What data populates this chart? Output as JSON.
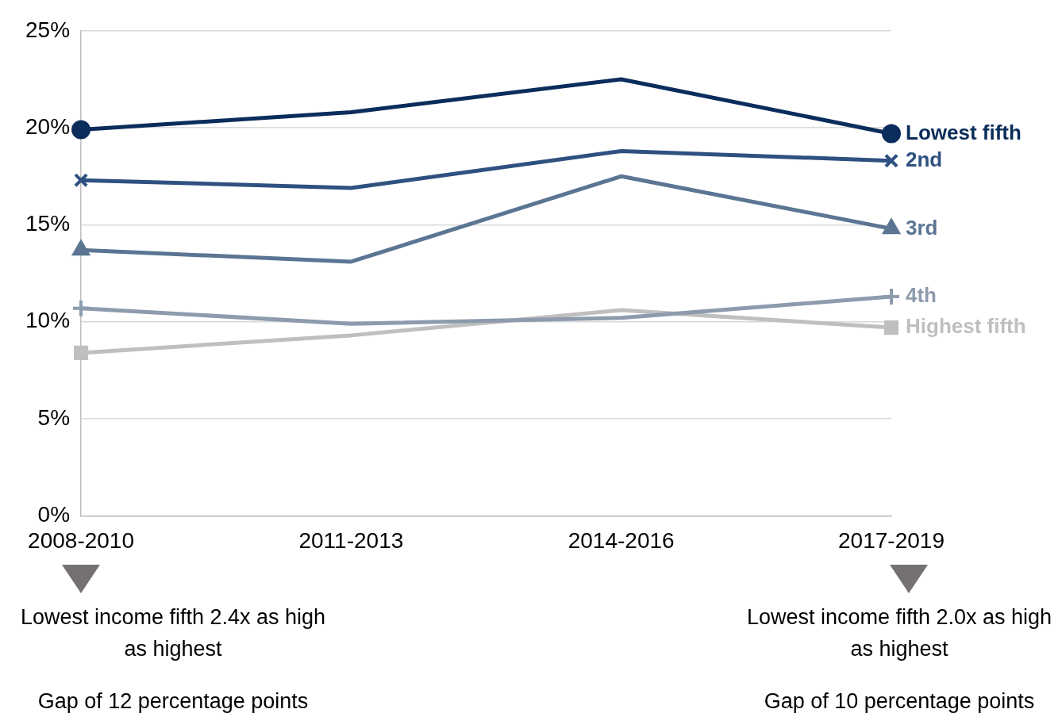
{
  "chart_data": {
    "type": "line",
    "categories": [
      "2008-2010",
      "2011-2013",
      "2014-2016",
      "2017-2019"
    ],
    "series": [
      {
        "name": "Lowest fifth",
        "color": "#0b2d5b",
        "marker": "circle",
        "values": [
          19.9,
          20.8,
          22.5,
          19.7
        ]
      },
      {
        "name": "2nd",
        "color": "#2f5180",
        "marker": "cross",
        "values": [
          17.3,
          16.9,
          18.8,
          18.3
        ]
      },
      {
        "name": "3rd",
        "color": "#5b7593",
        "marker": "triangle",
        "values": [
          13.7,
          13.1,
          17.5,
          14.8
        ]
      },
      {
        "name": "4th",
        "color": "#8d9bad",
        "marker": "plus",
        "values": [
          10.7,
          9.9,
          10.2,
          11.3
        ]
      },
      {
        "name": "Highest fifth",
        "color": "#bfbfbf",
        "marker": "square",
        "values": [
          8.4,
          9.3,
          10.6,
          9.7
        ]
      }
    ],
    "ylim": [
      0,
      25
    ],
    "yticks": [
      {
        "value": 0,
        "label": "0%"
      },
      {
        "value": 5,
        "label": "5%"
      },
      {
        "value": 10,
        "label": "10%"
      },
      {
        "value": 15,
        "label": "15%"
      },
      {
        "value": 20,
        "label": "20%"
      },
      {
        "value": 25,
        "label": "25%"
      }
    ],
    "grid": "y",
    "legend": false,
    "annotations": [
      "Lowest income fifth 2.4x as high as highest",
      "Gap of 12 percentage points",
      "Lowest income fifth 2.0x as high as highest",
      "Gap of 10 percentage points"
    ]
  }
}
